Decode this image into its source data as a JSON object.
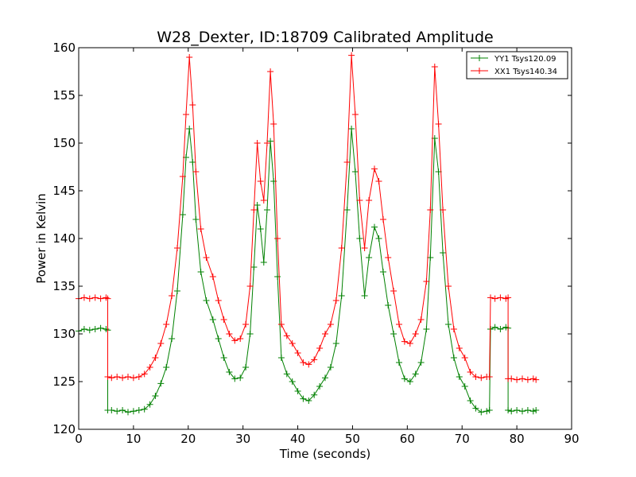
{
  "chart_data": {
    "type": "line",
    "title": "W28_Dexter, ID:18709 Calibrated Amplitude",
    "xlabel": "Time (seconds)",
    "ylabel": "Power in Kelvin",
    "xlim": [
      0,
      90
    ],
    "ylim": [
      120,
      160
    ],
    "xticks": [
      0,
      10,
      20,
      30,
      40,
      50,
      60,
      70,
      80,
      90
    ],
    "yticks": [
      120,
      125,
      130,
      135,
      140,
      145,
      150,
      155,
      160
    ],
    "grid": false,
    "legend_position": "top-right",
    "series": [
      {
        "name": "YY1 Tsys120.09",
        "color": "#008000",
        "marker": "+",
        "points": [
          [
            0,
            130.3
          ],
          [
            1,
            130.5
          ],
          [
            2,
            130.4
          ],
          [
            3,
            130.5
          ],
          [
            4,
            130.6
          ],
          [
            5,
            130.5
          ],
          [
            5.3,
            130.4
          ],
          [
            5.3,
            122.0
          ],
          [
            6,
            122.0
          ],
          [
            7,
            121.9
          ],
          [
            8,
            122.0
          ],
          [
            9,
            121.8
          ],
          [
            10,
            121.9
          ],
          [
            11,
            122.0
          ],
          [
            12,
            122.1
          ],
          [
            13,
            122.6
          ],
          [
            14,
            123.5
          ],
          [
            15,
            124.8
          ],
          [
            16,
            126.5
          ],
          [
            17,
            129.5
          ],
          [
            18,
            134.5
          ],
          [
            19,
            142.5
          ],
          [
            19.6,
            148.5
          ],
          [
            20.2,
            151.5
          ],
          [
            20.8,
            148.0
          ],
          [
            21.4,
            142.0
          ],
          [
            22.3,
            136.5
          ],
          [
            23.3,
            133.5
          ],
          [
            24.5,
            131.5
          ],
          [
            25.5,
            129.5
          ],
          [
            26.5,
            127.5
          ],
          [
            27.5,
            126.0
          ],
          [
            28.5,
            125.3
          ],
          [
            29.5,
            125.4
          ],
          [
            30.5,
            126.5
          ],
          [
            31.3,
            130.0
          ],
          [
            32.0,
            137.0
          ],
          [
            32.6,
            143.5
          ],
          [
            33.2,
            141.0
          ],
          [
            33.8,
            137.5
          ],
          [
            34.4,
            143.0
          ],
          [
            35.0,
            150.2
          ],
          [
            35.6,
            146.0
          ],
          [
            36.3,
            136.0
          ],
          [
            37.0,
            127.5
          ],
          [
            38,
            125.8
          ],
          [
            39,
            125.0
          ],
          [
            40,
            124.0
          ],
          [
            41,
            123.2
          ],
          [
            42,
            123.0
          ],
          [
            43,
            123.6
          ],
          [
            44,
            124.5
          ],
          [
            45,
            125.4
          ],
          [
            46,
            126.5
          ],
          [
            47,
            129.0
          ],
          [
            48,
            134.0
          ],
          [
            49,
            143.0
          ],
          [
            49.8,
            151.5
          ],
          [
            50.5,
            147.0
          ],
          [
            51.3,
            140.0
          ],
          [
            52.2,
            134.0
          ],
          [
            53.0,
            138.0
          ],
          [
            54.0,
            141.2
          ],
          [
            54.8,
            140.0
          ],
          [
            55.6,
            136.5
          ],
          [
            56.5,
            133.0
          ],
          [
            57.5,
            130.0
          ],
          [
            58.5,
            127.0
          ],
          [
            59.5,
            125.3
          ],
          [
            60.5,
            125.0
          ],
          [
            61.5,
            125.8
          ],
          [
            62.5,
            127.0
          ],
          [
            63.5,
            130.5
          ],
          [
            64.2,
            138.0
          ],
          [
            65.0,
            150.5
          ],
          [
            65.7,
            147.0
          ],
          [
            66.5,
            138.5
          ],
          [
            67.5,
            131.0
          ],
          [
            68.5,
            127.5
          ],
          [
            69.5,
            125.5
          ],
          [
            70.5,
            124.5
          ],
          [
            71.5,
            123.0
          ],
          [
            72.5,
            122.2
          ],
          [
            73.5,
            121.8
          ],
          [
            74.5,
            121.9
          ],
          [
            75.0,
            122.0
          ],
          [
            75.2,
            130.5
          ],
          [
            76,
            130.7
          ],
          [
            77,
            130.5
          ],
          [
            78,
            130.7
          ],
          [
            78.4,
            130.6
          ],
          [
            78.4,
            122.0
          ],
          [
            79,
            121.9
          ],
          [
            80,
            122.0
          ],
          [
            81,
            121.9
          ],
          [
            82,
            122.0
          ],
          [
            83,
            121.9
          ],
          [
            83.5,
            122.0
          ]
        ]
      },
      {
        "name": "XX1 Tsys140.34",
        "color": "#ff0000",
        "marker": "+",
        "points": [
          [
            0,
            133.7
          ],
          [
            1,
            133.8
          ],
          [
            2,
            133.7
          ],
          [
            3,
            133.8
          ],
          [
            4,
            133.7
          ],
          [
            5,
            133.8
          ],
          [
            5.3,
            133.7
          ],
          [
            5.3,
            125.5
          ],
          [
            6,
            125.4
          ],
          [
            7,
            125.5
          ],
          [
            8,
            125.4
          ],
          [
            9,
            125.5
          ],
          [
            10,
            125.4
          ],
          [
            11,
            125.5
          ],
          [
            12,
            125.8
          ],
          [
            13,
            126.5
          ],
          [
            14,
            127.5
          ],
          [
            15,
            129.0
          ],
          [
            16,
            131.0
          ],
          [
            17,
            134.0
          ],
          [
            18,
            139.0
          ],
          [
            19,
            146.5
          ],
          [
            19.6,
            153.0
          ],
          [
            20.2,
            159.0
          ],
          [
            20.8,
            154.0
          ],
          [
            21.4,
            147.0
          ],
          [
            22.3,
            141.0
          ],
          [
            23.3,
            138.0
          ],
          [
            24.5,
            136.0
          ],
          [
            25.5,
            133.5
          ],
          [
            26.5,
            131.5
          ],
          [
            27.5,
            130.0
          ],
          [
            28.5,
            129.3
          ],
          [
            29.5,
            129.5
          ],
          [
            30.5,
            131.0
          ],
          [
            31.3,
            135.0
          ],
          [
            32.0,
            143.0
          ],
          [
            32.6,
            150.0
          ],
          [
            33.2,
            146.0
          ],
          [
            33.8,
            144.0
          ],
          [
            34.4,
            150.0
          ],
          [
            35.0,
            157.5
          ],
          [
            35.6,
            152.0
          ],
          [
            36.3,
            140.0
          ],
          [
            37.0,
            131.0
          ],
          [
            38,
            129.8
          ],
          [
            39,
            129.0
          ],
          [
            40,
            128.0
          ],
          [
            41,
            127.0
          ],
          [
            42,
            126.8
          ],
          [
            43,
            127.3
          ],
          [
            44,
            128.5
          ],
          [
            45,
            130.0
          ],
          [
            46,
            131.0
          ],
          [
            47,
            133.5
          ],
          [
            48,
            139.0
          ],
          [
            49,
            148.0
          ],
          [
            49.8,
            159.2
          ],
          [
            50.5,
            153.0
          ],
          [
            51.3,
            144.0
          ],
          [
            52.2,
            139.0
          ],
          [
            53.0,
            144.0
          ],
          [
            54.0,
            147.3
          ],
          [
            54.8,
            146.0
          ],
          [
            55.6,
            142.0
          ],
          [
            56.5,
            138.0
          ],
          [
            57.5,
            134.5
          ],
          [
            58.5,
            131.0
          ],
          [
            59.5,
            129.2
          ],
          [
            60.5,
            129.0
          ],
          [
            61.5,
            130.0
          ],
          [
            62.5,
            131.5
          ],
          [
            63.5,
            135.5
          ],
          [
            64.2,
            143.0
          ],
          [
            65.0,
            158.0
          ],
          [
            65.7,
            152.0
          ],
          [
            66.5,
            143.0
          ],
          [
            67.5,
            135.0
          ],
          [
            68.5,
            130.5
          ],
          [
            69.5,
            128.5
          ],
          [
            70.5,
            127.5
          ],
          [
            71.5,
            126.0
          ],
          [
            72.5,
            125.5
          ],
          [
            73.5,
            125.4
          ],
          [
            74.5,
            125.5
          ],
          [
            75.0,
            125.5
          ],
          [
            75.2,
            133.8
          ],
          [
            76,
            133.7
          ],
          [
            77,
            133.8
          ],
          [
            78,
            133.7
          ],
          [
            78.4,
            133.8
          ],
          [
            78.4,
            125.3
          ],
          [
            79,
            125.3
          ],
          [
            80,
            125.2
          ],
          [
            81,
            125.3
          ],
          [
            82,
            125.2
          ],
          [
            83,
            125.3
          ],
          [
            83.5,
            125.2
          ]
        ]
      }
    ]
  }
}
